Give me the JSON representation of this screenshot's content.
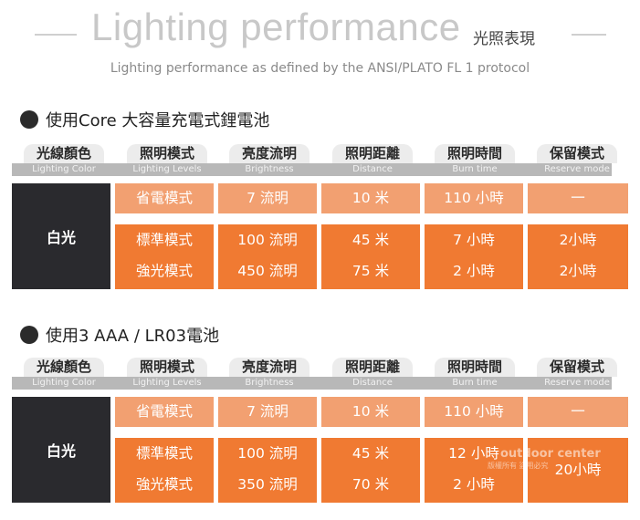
{
  "header": {
    "title": "Lighting performance",
    "title_zh": "光照表現",
    "subtitle": "Lighting performance as defined by the ANSI/PLATO FL 1 protocol"
  },
  "columns": [
    {
      "zh": "光線顏色",
      "en": "Lighting Color"
    },
    {
      "zh": "照明模式",
      "en": "Lighting Levels"
    },
    {
      "zh": "亮度流明",
      "en": "Brightness"
    },
    {
      "zh": "照明距離",
      "en": "Distance"
    },
    {
      "zh": "照明時間",
      "en": "Burn time"
    },
    {
      "zh": "保留模式",
      "en": "Reserve mode"
    }
  ],
  "sections": [
    {
      "title": "使用Core 大容量充電式鋰電池",
      "light_color": "白光",
      "rows": [
        {
          "mode": "省電模式",
          "brightness": "7 流明",
          "distance": "10 米",
          "burn": "110 小時",
          "reserve": "一"
        },
        {
          "mode": "標準模式",
          "brightness": "100 流明",
          "distance": "45 米",
          "burn": "7 小時",
          "reserve": "2小時"
        },
        {
          "mode": "強光模式",
          "brightness": "450 流明",
          "distance": "75 米",
          "burn": "2 小時",
          "reserve": "2小時"
        }
      ]
    },
    {
      "title": "使用3 AAA / LR03電池",
      "light_color": "白光",
      "rows": [
        {
          "mode": "省電模式",
          "brightness": "7 流明",
          "distance": "10 米",
          "burn": "110 小時",
          "reserve": "一"
        },
        {
          "mode": "標準模式",
          "brightness": "100 流明",
          "distance": "45 米",
          "burn": "12 小時",
          "reserve": "20小時"
        },
        {
          "mode": "強光模式",
          "brightness": "350 流明",
          "distance": "70 米",
          "burn": "2 小時",
          "reserve": ""
        }
      ]
    }
  ],
  "watermark": {
    "text": "outdoor center",
    "subtext": "版權所有 盜用必究"
  },
  "colors": {
    "light_orange": "#f2a071",
    "dark_orange": "#f07a32",
    "dark_cell": "#2a2a2e",
    "header_tab": "#ececec",
    "header_bar": "#b8b8b8"
  }
}
